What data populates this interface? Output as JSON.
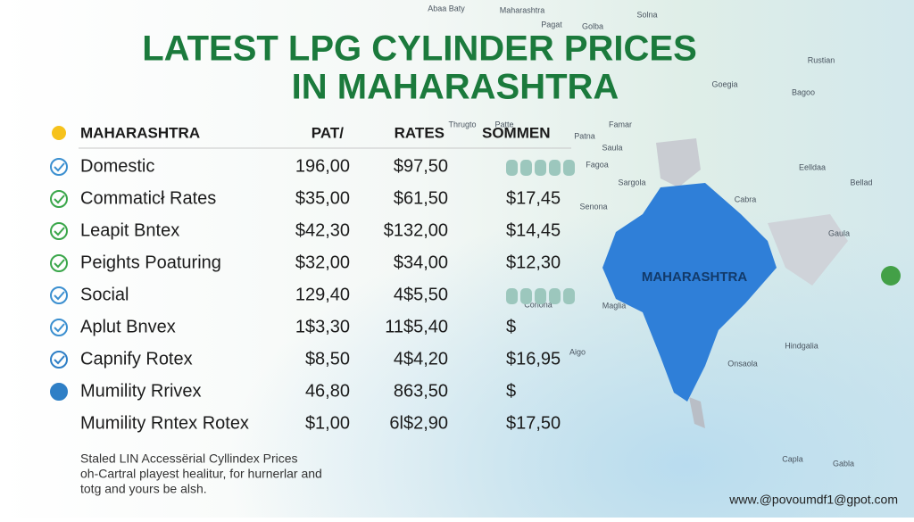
{
  "header": {
    "title": [
      "LATEST LPG CYLINDER PRICES",
      "IN MAHARASHTRA"
    ]
  },
  "table": {
    "headers": [
      "MAHARASHTRA",
      "PAT/",
      "RATES",
      "SOMMEN"
    ],
    "rows": [
      [
        "Domestic",
        "196,00",
        "$97,50",
        null
      ],
      [
        "Commaticł Rates",
        "$35,00",
        "$61,50",
        "$17,45"
      ],
      [
        "Leapit Bntex",
        "$42,30",
        "$132,00",
        "$14,45"
      ],
      [
        "Peights Poaturing",
        "$32,00",
        "$34,00",
        "$12,30"
      ],
      [
        "Social",
        "129,40",
        "4$5,50",
        null
      ],
      [
        "Aplut Bnvex",
        "1$3,30",
        "11$5,40",
        "$"
      ],
      [
        "Capnify Rotex",
        "$8,50",
        "4$4,20",
        "$16,95"
      ],
      [
        "Mumility Rrivex",
        "46,80",
        "863,50",
        "$"
      ],
      [
        "Mumility Rntex Rotex",
        "$1,00",
        "6l$2,90",
        "$17,50"
      ]
    ]
  },
  "footnote": [
    "Staled LIN Accessërial Cyllindex Prices",
    "oh-Cartral playest healitur, for hurnerlar and",
    "totg and yours be alsh."
  ],
  "website": "www.@povoumdf1@gpot.com",
  "map": {
    "region": "MAHARASHTRA",
    "labels": [
      "Abaa Baty",
      "Maharashtra",
      "Pagat",
      "Golba",
      "Solna",
      "Rustian",
      "Bagoo",
      "Goegia",
      "Patte",
      "Thrugto",
      "Famar",
      "Patna",
      "Saula",
      "Fagoa",
      "Sargola",
      "Senona",
      "Eelldaa",
      "Gaula",
      "Bellad",
      "Cabra",
      "Hindgalia",
      "Onsaola",
      "Maglia",
      "Corlona",
      "Aigo",
      "Capla",
      "Gabla"
    ]
  }
}
